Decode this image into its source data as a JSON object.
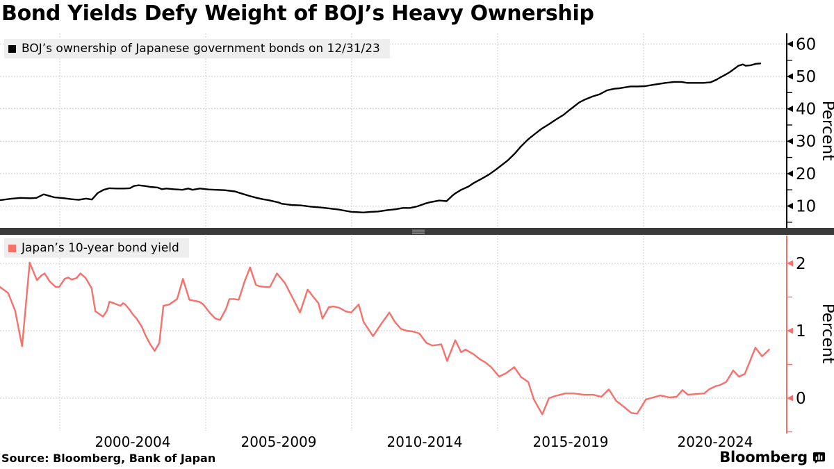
{
  "title": "Bond Yields Defy Weight of BOJ’s Heavy Ownership",
  "source": "Source: Bloomberg, Bank of Japan",
  "brand": {
    "name": "Bloomberg"
  },
  "colors": {
    "top_line": "#000000",
    "bottom_line": "#f7706a",
    "grid": "#cccccc",
    "separator": "#3a3a3a",
    "separator_handle": "#9b9b9b",
    "legend_bg": "#eeeeee",
    "text": "#000000"
  },
  "x_axis": {
    "group_labels": [
      "2000-2004",
      "2005-2009",
      "2010-2014",
      "2015-2019",
      "2020-2024"
    ],
    "boundary_years": [
      2000,
      2005,
      2010,
      2015,
      2020,
      2025
    ]
  },
  "chart_data": [
    {
      "type": "line",
      "id": "boj-ownership",
      "panel": "top",
      "name": "BOJ’s ownership of Japanese government bonds on 12/31/23",
      "ylabel": "Percent",
      "yticks": [
        10,
        20,
        30,
        40,
        50,
        60
      ],
      "minor_yticks": [
        5,
        15,
        25,
        35,
        45,
        55
      ],
      "ylim": [
        3.2,
        63.3
      ],
      "xlim": [
        1997.9,
        2024.9
      ],
      "color": "#000000",
      "points": [
        [
          1997.95,
          11.8
        ],
        [
          1998.3,
          12.2
        ],
        [
          1998.65,
          12.5
        ],
        [
          1999.0,
          12.4
        ],
        [
          1999.2,
          12.5
        ],
        [
          1999.45,
          13.6
        ],
        [
          1999.8,
          12.7
        ],
        [
          2000.15,
          12.4
        ],
        [
          2000.4,
          12.1
        ],
        [
          2000.65,
          11.9
        ],
        [
          2000.9,
          12.3
        ],
        [
          2001.1,
          12.0
        ],
        [
          2001.3,
          14.0
        ],
        [
          2001.5,
          15.0
        ],
        [
          2001.7,
          15.5
        ],
        [
          2001.95,
          15.4
        ],
        [
          2002.2,
          15.4
        ],
        [
          2002.4,
          15.5
        ],
        [
          2002.55,
          16.2
        ],
        [
          2002.7,
          16.4
        ],
        [
          2002.9,
          16.2
        ],
        [
          2003.1,
          15.9
        ],
        [
          2003.35,
          15.7
        ],
        [
          2003.5,
          15.2
        ],
        [
          2003.65,
          15.4
        ],
        [
          2003.9,
          15.2
        ],
        [
          2004.2,
          15.0
        ],
        [
          2004.4,
          15.4
        ],
        [
          2004.55,
          15.0
        ],
        [
          2004.8,
          15.4
        ],
        [
          2005.1,
          15.1
        ],
        [
          2005.35,
          15.0
        ],
        [
          2005.65,
          14.9
        ],
        [
          2006.0,
          14.5
        ],
        [
          2006.25,
          13.8
        ],
        [
          2006.5,
          13.1
        ],
        [
          2006.75,
          12.5
        ],
        [
          2006.95,
          12.1
        ],
        [
          2007.15,
          11.8
        ],
        [
          2007.5,
          11.1
        ],
        [
          2007.6,
          10.7
        ],
        [
          2007.95,
          10.3
        ],
        [
          2008.25,
          10.2
        ],
        [
          2008.6,
          9.8
        ],
        [
          2008.9,
          9.6
        ],
        [
          2009.2,
          9.3
        ],
        [
          2009.55,
          8.9
        ],
        [
          2009.8,
          8.5
        ],
        [
          2010.0,
          8.2
        ],
        [
          2010.25,
          8.1
        ],
        [
          2010.4,
          8.0
        ],
        [
          2010.65,
          8.2
        ],
        [
          2010.9,
          8.3
        ],
        [
          2011.2,
          8.7
        ],
        [
          2011.5,
          9.0
        ],
        [
          2011.75,
          9.4
        ],
        [
          2012.0,
          9.4
        ],
        [
          2012.25,
          9.9
        ],
        [
          2012.5,
          10.7
        ],
        [
          2012.7,
          11.2
        ],
        [
          2013.0,
          11.7
        ],
        [
          2013.25,
          11.5
        ],
        [
          2013.45,
          13.2
        ],
        [
          2013.55,
          13.9
        ],
        [
          2013.75,
          15.0
        ],
        [
          2014.0,
          16.0
        ],
        [
          2014.2,
          17.2
        ],
        [
          2014.45,
          18.4
        ],
        [
          2014.7,
          19.7
        ],
        [
          2014.95,
          21.3
        ],
        [
          2015.05,
          22.0
        ],
        [
          2015.35,
          24.1
        ],
        [
          2015.6,
          26.3
        ],
        [
          2015.8,
          28.4
        ],
        [
          2016.05,
          30.6
        ],
        [
          2016.3,
          32.4
        ],
        [
          2016.5,
          33.8
        ],
        [
          2016.75,
          35.2
        ],
        [
          2017.0,
          36.7
        ],
        [
          2017.25,
          38.1
        ],
        [
          2017.5,
          39.9
        ],
        [
          2017.8,
          42.0
        ],
        [
          2018.0,
          42.9
        ],
        [
          2018.25,
          43.8
        ],
        [
          2018.5,
          44.5
        ],
        [
          2018.75,
          45.7
        ],
        [
          2019.0,
          46.2
        ],
        [
          2019.15,
          46.3
        ],
        [
          2019.55,
          46.9
        ],
        [
          2019.8,
          46.9
        ],
        [
          2020.05,
          47.0
        ],
        [
          2020.4,
          47.5
        ],
        [
          2020.75,
          48.0
        ],
        [
          2021.05,
          48.3
        ],
        [
          2021.3,
          48.3
        ],
        [
          2021.5,
          48.0
        ],
        [
          2021.85,
          48.0
        ],
        [
          2022.05,
          48.0
        ],
        [
          2022.3,
          48.2
        ],
        [
          2022.5,
          49.0
        ],
        [
          2022.65,
          49.8
        ],
        [
          2022.8,
          50.5
        ],
        [
          2022.95,
          51.3
        ],
        [
          2023.1,
          52.3
        ],
        [
          2023.25,
          53.3
        ],
        [
          2023.4,
          53.7
        ],
        [
          2023.5,
          53.3
        ],
        [
          2023.65,
          53.4
        ],
        [
          2023.85,
          53.9
        ],
        [
          2024.0,
          54.0
        ]
      ]
    },
    {
      "type": "line",
      "id": "jgb-10yr-yield",
      "panel": "bottom",
      "name": "Japan’s 10-year bond yield",
      "ylabel": "Percent",
      "yticks": [
        0,
        1,
        2
      ],
      "minor_yticks": [
        -0.5,
        0.5,
        1.5
      ],
      "ylim": [
        -0.5,
        2.4
      ],
      "xlim": [
        1997.9,
        2024.9
      ],
      "color": "#f7706a",
      "points": [
        [
          1997.95,
          1.65
        ],
        [
          1998.23,
          1.56
        ],
        [
          1998.47,
          1.3
        ],
        [
          1998.71,
          0.77
        ],
        [
          1998.97,
          2.01
        ],
        [
          1999.22,
          1.75
        ],
        [
          1999.37,
          1.82
        ],
        [
          1999.48,
          1.85
        ],
        [
          1999.66,
          1.73
        ],
        [
          1999.86,
          1.65
        ],
        [
          1999.98,
          1.65
        ],
        [
          2000.17,
          1.77
        ],
        [
          2000.29,
          1.79
        ],
        [
          2000.41,
          1.76
        ],
        [
          2000.57,
          1.78
        ],
        [
          2000.71,
          1.85
        ],
        [
          2000.89,
          1.78
        ],
        [
          2001.09,
          1.63
        ],
        [
          2001.22,
          1.29
        ],
        [
          2001.35,
          1.25
        ],
        [
          2001.48,
          1.21
        ],
        [
          2001.62,
          1.3
        ],
        [
          2001.7,
          1.43
        ],
        [
          2001.84,
          1.41
        ],
        [
          2001.96,
          1.39
        ],
        [
          2002.08,
          1.37
        ],
        [
          2002.17,
          1.41
        ],
        [
          2002.24,
          1.39
        ],
        [
          2002.38,
          1.32
        ],
        [
          2002.49,
          1.25
        ],
        [
          2002.63,
          1.18
        ],
        [
          2002.81,
          1.06
        ],
        [
          2002.95,
          0.92
        ],
        [
          2003.1,
          0.8
        ],
        [
          2003.25,
          0.7
        ],
        [
          2003.41,
          0.82
        ],
        [
          2003.55,
          1.37
        ],
        [
          2003.75,
          1.39
        ],
        [
          2004.02,
          1.47
        ],
        [
          2004.22,
          1.77
        ],
        [
          2004.44,
          1.46
        ],
        [
          2004.66,
          1.44
        ],
        [
          2004.78,
          1.43
        ],
        [
          2004.92,
          1.39
        ],
        [
          2005.13,
          1.27
        ],
        [
          2005.33,
          1.18
        ],
        [
          2005.49,
          1.16
        ],
        [
          2005.69,
          1.32
        ],
        [
          2005.81,
          1.47
        ],
        [
          2005.97,
          1.47
        ],
        [
          2006.13,
          1.46
        ],
        [
          2006.33,
          1.73
        ],
        [
          2006.52,
          1.94
        ],
        [
          2006.72,
          1.68
        ],
        [
          2006.84,
          1.66
        ],
        [
          2007.04,
          1.65
        ],
        [
          2007.2,
          1.65
        ],
        [
          2007.44,
          1.85
        ],
        [
          2007.71,
          1.71
        ],
        [
          2007.95,
          1.51
        ],
        [
          2008.23,
          1.27
        ],
        [
          2008.49,
          1.61
        ],
        [
          2008.71,
          1.49
        ],
        [
          2008.86,
          1.41
        ],
        [
          2009.0,
          1.18
        ],
        [
          2009.22,
          1.35
        ],
        [
          2009.38,
          1.36
        ],
        [
          2009.58,
          1.34
        ],
        [
          2009.78,
          1.29
        ],
        [
          2009.98,
          1.27
        ],
        [
          2010.24,
          1.39
        ],
        [
          2010.41,
          1.13
        ],
        [
          2010.73,
          0.92
        ],
        [
          2011.01,
          1.1
        ],
        [
          2011.29,
          1.27
        ],
        [
          2011.48,
          1.13
        ],
        [
          2011.68,
          1.03
        ],
        [
          2011.88,
          1.0
        ],
        [
          2012.08,
          0.99
        ],
        [
          2012.32,
          0.96
        ],
        [
          2012.56,
          0.82
        ],
        [
          2012.76,
          0.78
        ],
        [
          2012.94,
          0.79
        ],
        [
          2013.07,
          0.8
        ],
        [
          2013.27,
          0.55
        ],
        [
          2013.55,
          0.86
        ],
        [
          2013.75,
          0.68
        ],
        [
          2013.9,
          0.72
        ],
        [
          2014.18,
          0.65
        ],
        [
          2014.38,
          0.58
        ],
        [
          2014.58,
          0.53
        ],
        [
          2014.78,
          0.46
        ],
        [
          2015.05,
          0.32
        ],
        [
          2015.29,
          0.37
        ],
        [
          2015.57,
          0.46
        ],
        [
          2015.81,
          0.31
        ],
        [
          2016.05,
          0.24
        ],
        [
          2016.24,
          -0.02
        ],
        [
          2016.53,
          -0.24
        ],
        [
          2016.76,
          0.0
        ],
        [
          2016.96,
          0.03
        ],
        [
          2017.32,
          0.07
        ],
        [
          2017.6,
          0.07
        ],
        [
          2017.95,
          0.05
        ],
        [
          2018.27,
          0.05
        ],
        [
          2018.55,
          0.02
        ],
        [
          2018.81,
          0.13
        ],
        [
          2019.06,
          -0.04
        ],
        [
          2019.3,
          -0.12
        ],
        [
          2019.58,
          -0.22
        ],
        [
          2019.78,
          -0.23
        ],
        [
          2020.08,
          -0.02
        ],
        [
          2020.33,
          0.01
        ],
        [
          2020.57,
          0.04
        ],
        [
          2020.89,
          0.01
        ],
        [
          2021.13,
          0.02
        ],
        [
          2021.33,
          0.12
        ],
        [
          2021.52,
          0.05
        ],
        [
          2021.76,
          0.06
        ],
        [
          2022.08,
          0.07
        ],
        [
          2022.24,
          0.13
        ],
        [
          2022.48,
          0.18
        ],
        [
          2022.6,
          0.19
        ],
        [
          2022.83,
          0.24
        ],
        [
          2023.07,
          0.41
        ],
        [
          2023.27,
          0.32
        ],
        [
          2023.47,
          0.36
        ],
        [
          2023.83,
          0.75
        ],
        [
          2024.06,
          0.62
        ],
        [
          2024.3,
          0.72
        ]
      ]
    }
  ]
}
